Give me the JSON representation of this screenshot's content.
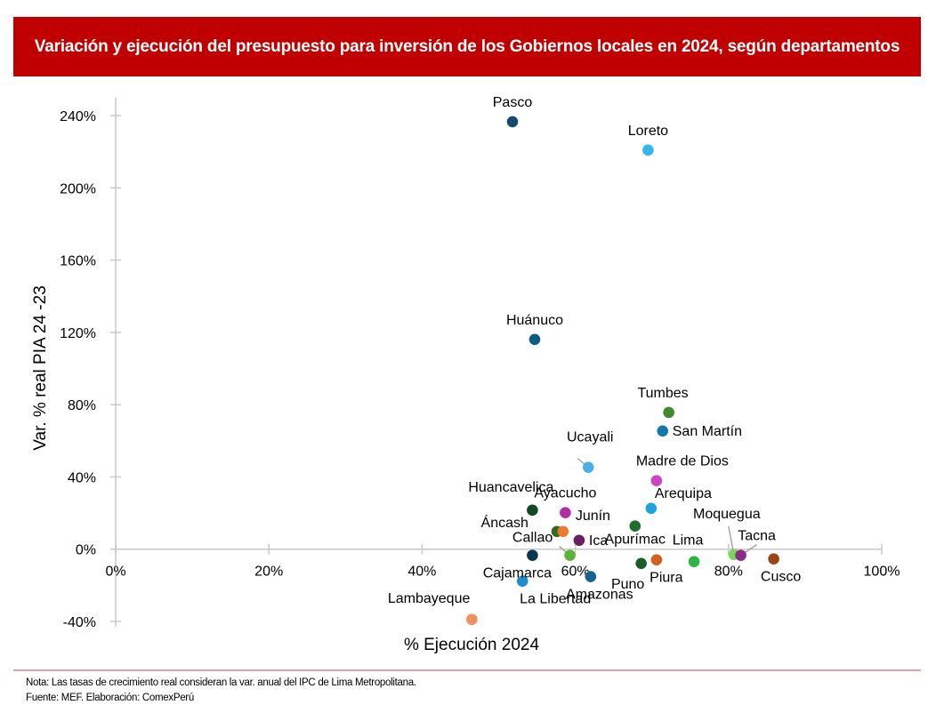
{
  "header": {
    "title": "Variación y ejecución del presupuesto para inversión de los Gobiernos locales en 2024, según departamentos"
  },
  "footer": {
    "note": "Nota: Las tasas de crecimiento real consideran la var. anual del IPC de Lima Metropolitana.",
    "source": "Fuente: MEF. Elaboración: ComexPerú"
  },
  "colors": {
    "title_bg": "#c00000",
    "title_text": "#ffffff",
    "footer_rule": "#e8a0a4",
    "axis": "#c8c8c8"
  },
  "chart_data": {
    "type": "scatter",
    "title": "Variación y ejecución del presupuesto para inversión de los Gobiernos locales en 2024, según departamentos",
    "xlabel": "% Ejecución 2024",
    "ylabel": "Var. % real PIA 24 -23",
    "xlim": [
      0,
      100
    ],
    "ylim": [
      -40,
      240
    ],
    "x_ticks": [
      0,
      20,
      40,
      60,
      80,
      100
    ],
    "x_tick_labels": [
      "0%",
      "20%",
      "40%",
      "60%",
      "80%",
      "100%"
    ],
    "y_ticks": [
      -40,
      0,
      40,
      80,
      120,
      160,
      200,
      240
    ],
    "y_tick_labels": [
      "-40%",
      "0%",
      "40%",
      "80%",
      "120%",
      "160%",
      "200%",
      "240%"
    ],
    "grid": false,
    "legend": "none",
    "points": [
      {
        "name": "Pasco",
        "x": 51.8,
        "y": 236.6,
        "color": "#174a6b",
        "label_pos": "top"
      },
      {
        "name": "Loreto",
        "x": 69.5,
        "y": 220.9,
        "color": "#33b8ee",
        "label_pos": "top"
      },
      {
        "name": "Huánuco",
        "x": 54.7,
        "y": 116.1,
        "color": "#0e5b85",
        "label_pos": "top"
      },
      {
        "name": "Tumbes",
        "x": 72.2,
        "y": 75.7,
        "color": "#3f8a2e",
        "label_pos": "top-left"
      },
      {
        "name": "San Martín",
        "x": 71.4,
        "y": 65.4,
        "color": "#1178ab",
        "label_pos": "right"
      },
      {
        "name": "Ucayali",
        "x": 61.7,
        "y": 45.3,
        "color": "#4cb0e6",
        "label_pos": "top-left-leader"
      },
      {
        "name": "Madre de Dios",
        "x": 70.6,
        "y": 37.9,
        "color": "#cc44c4",
        "label_pos": "top"
      },
      {
        "name": "Arequipa",
        "x": 69.9,
        "y": 22.6,
        "color": "#1ea3e0",
        "label_pos": "top-right"
      },
      {
        "name": "Huancavelica",
        "x": 54.4,
        "y": 21.6,
        "color": "#0f4a24",
        "label_pos": "top-left"
      },
      {
        "name": "Ayacucho",
        "x": 58.7,
        "y": 20.2,
        "color": "#b02ea8",
        "label_pos": "top"
      },
      {
        "name": "Apurímac",
        "x": 67.8,
        "y": 12.8,
        "color": "#1f6e2a",
        "label_pos": "bottom"
      },
      {
        "name": "Áncash",
        "x": 57.6,
        "y": 9.8,
        "color": "#2f6b21",
        "label_pos": "left"
      },
      {
        "name": "Junín",
        "x": 58.4,
        "y": 9.8,
        "color": "#ed7a30",
        "label_pos": "top-right"
      },
      {
        "name": "Ica",
        "x": 60.5,
        "y": 4.9,
        "color": "#6b1d62",
        "label_pos": "right"
      },
      {
        "name": "Cajamarca",
        "x": 54.4,
        "y": -3.4,
        "color": "#0d3550",
        "label_pos": "bottom"
      },
      {
        "name": "Callao",
        "x": 59.3,
        "y": -3.4,
        "color": "#5ab23a",
        "label_pos": "top-left-leader"
      },
      {
        "name": "La Libertad",
        "x": 53.1,
        "y": -17.7,
        "color": "#1e8ecc",
        "label_pos": "bottom-right"
      },
      {
        "name": "Amazonas",
        "x": 62.0,
        "y": -15.2,
        "color": "#15628e",
        "label_pos": "bottom"
      },
      {
        "name": "Puno",
        "x": 68.6,
        "y": -7.9,
        "color": "#195e26",
        "label_pos": "bottom-left"
      },
      {
        "name": "Piura",
        "x": 70.6,
        "y": -5.9,
        "color": "#d4601f",
        "label_pos": "bottom"
      },
      {
        "name": "Lima",
        "x": 75.5,
        "y": -6.9,
        "color": "#2fb448",
        "label_pos": "top"
      },
      {
        "name": "Moquegua",
        "x": 80.7,
        "y": -3.0,
        "color": "#7ad65a",
        "label_pos": "top-leader"
      },
      {
        "name": "Tacna",
        "x": 81.6,
        "y": -3.4,
        "color": "#8c2a88",
        "label_pos": "top-right-leader"
      },
      {
        "name": "Cusco",
        "x": 85.9,
        "y": -5.4,
        "color": "#9a4512",
        "label_pos": "bottom"
      },
      {
        "name": "Lambayeque",
        "x": 46.5,
        "y": -38.9,
        "color": "#f0915e",
        "label_pos": "top-left"
      }
    ]
  }
}
